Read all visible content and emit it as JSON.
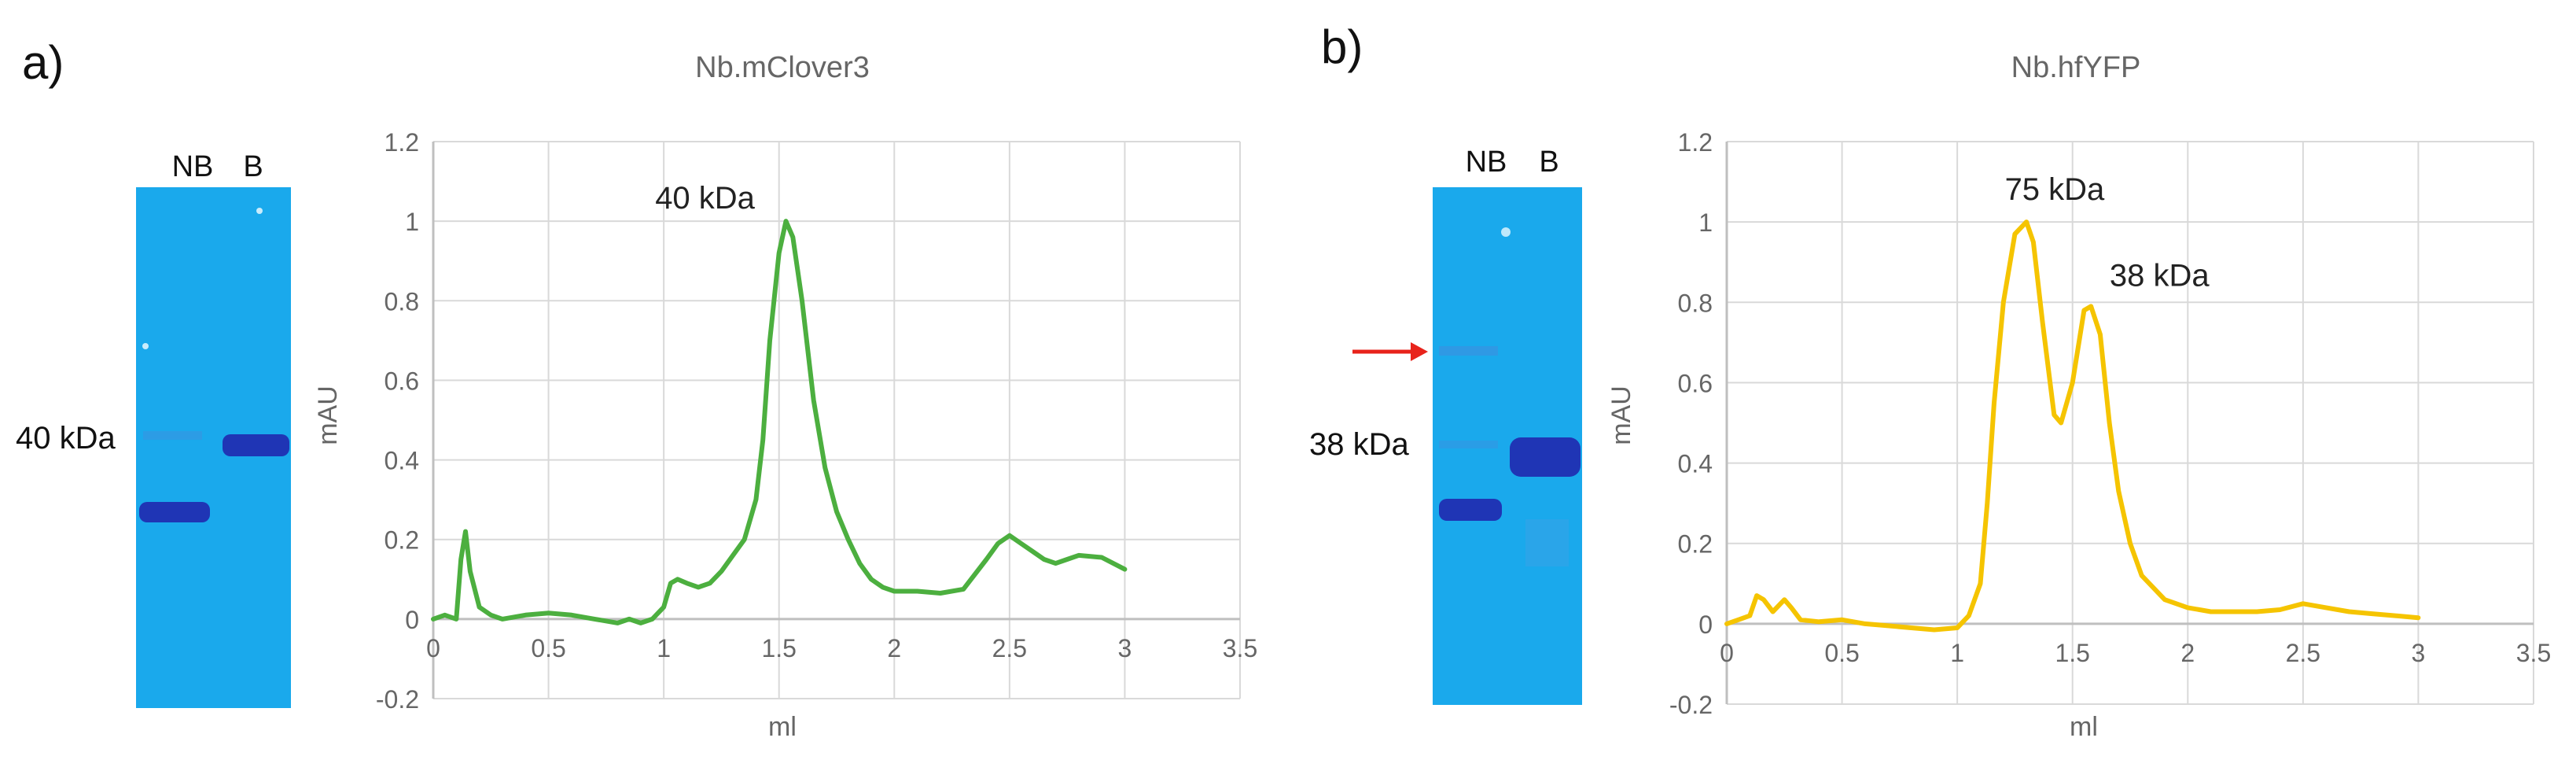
{
  "panels": [
    {
      "id": "a",
      "label": "a)",
      "gel": {
        "lanes": [
          "NB",
          "B"
        ],
        "marker_label": "40 kDa",
        "background_color": "#1aa9ec",
        "band_color": "#1f35b5"
      },
      "chart_data": {
        "type": "line",
        "title": "Nb.mClover3",
        "xlabel": "ml",
        "ylabel": "mAU",
        "xlim": [
          0,
          3.5
        ],
        "ylim": [
          -0.2,
          1.2
        ],
        "xticks": [
          0,
          0.5,
          1,
          1.5,
          2,
          2.5,
          3,
          3.5
        ],
        "yticks": [
          -0.2,
          0,
          0.2,
          0.4,
          0.6,
          0.8,
          1,
          1.2
        ],
        "xtick_labels": [
          "0",
          "0.5",
          "1",
          "1.5",
          "2",
          "2.5",
          "3",
          "3.5"
        ],
        "ytick_labels": [
          "-0.2",
          "0",
          "0.2",
          "0.4",
          "0.6",
          "0.8",
          "1",
          "1.2"
        ],
        "grid": true,
        "series": [
          {
            "name": "Nb.mClover3",
            "color": "#4caf3f",
            "x": [
              0,
              0.05,
              0.1,
              0.12,
              0.14,
              0.16,
              0.2,
              0.25,
              0.3,
              0.4,
              0.5,
              0.6,
              0.7,
              0.8,
              0.85,
              0.9,
              0.95,
              1.0,
              1.03,
              1.06,
              1.1,
              1.15,
              1.2,
              1.25,
              1.3,
              1.35,
              1.4,
              1.43,
              1.46,
              1.5,
              1.53,
              1.56,
              1.6,
              1.65,
              1.7,
              1.75,
              1.8,
              1.85,
              1.9,
              1.95,
              2.0,
              2.1,
              2.2,
              2.3,
              2.4,
              2.45,
              2.5,
              2.55,
              2.6,
              2.65,
              2.7,
              2.75,
              2.8,
              2.9,
              3.0
            ],
            "y": [
              0,
              0.01,
              0,
              0.15,
              0.22,
              0.12,
              0.03,
              0.01,
              0,
              0.01,
              0.015,
              0.01,
              0,
              -0.01,
              0,
              -0.01,
              0,
              0.03,
              0.09,
              0.1,
              0.09,
              0.08,
              0.09,
              0.12,
              0.16,
              0.2,
              0.3,
              0.45,
              0.7,
              0.92,
              1.0,
              0.96,
              0.8,
              0.55,
              0.38,
              0.27,
              0.2,
              0.14,
              0.1,
              0.08,
              0.07,
              0.07,
              0.065,
              0.075,
              0.15,
              0.19,
              0.21,
              0.19,
              0.17,
              0.15,
              0.14,
              0.15,
              0.16,
              0.155,
              0.125
            ]
          }
        ],
        "annotations": [
          {
            "text": "40 kDa",
            "x": 1.52,
            "y": 1.0
          }
        ]
      }
    },
    {
      "id": "b",
      "label": "b)",
      "gel": {
        "lanes": [
          "NB",
          "B"
        ],
        "marker_label": "38 kDa",
        "background_color": "#1aa9ec",
        "band_color": "#1f35b5",
        "arrow_color": "#e8231b"
      },
      "chart_data": {
        "type": "line",
        "title": "Nb.hfYFP",
        "xlabel": "ml",
        "ylabel": "mAU",
        "xlim": [
          0,
          3.5
        ],
        "ylim": [
          -0.2,
          1.2
        ],
        "xticks": [
          0,
          0.5,
          1,
          1.5,
          2,
          2.5,
          3,
          3.5
        ],
        "yticks": [
          -0.2,
          0,
          0.2,
          0.4,
          0.6,
          0.8,
          1,
          1.2
        ],
        "xtick_labels": [
          "0",
          "0.5",
          "1",
          "1.5",
          "2",
          "2.5",
          "3",
          "3.5"
        ],
        "ytick_labels": [
          "-0.2",
          "0",
          "0.2",
          "0.4",
          "0.6",
          "0.8",
          "1",
          "1.2"
        ],
        "grid": true,
        "series": [
          {
            "name": "Nb.hfYFP",
            "color": "#f5c400",
            "x": [
              0,
              0.05,
              0.1,
              0.13,
              0.16,
              0.2,
              0.25,
              0.28,
              0.32,
              0.4,
              0.5,
              0.6,
              0.7,
              0.8,
              0.9,
              1.0,
              1.05,
              1.1,
              1.13,
              1.16,
              1.2,
              1.25,
              1.3,
              1.33,
              1.37,
              1.42,
              1.45,
              1.5,
              1.55,
              1.58,
              1.62,
              1.66,
              1.7,
              1.75,
              1.8,
              1.9,
              2.0,
              2.1,
              2.2,
              2.3,
              2.4,
              2.5,
              2.6,
              2.7,
              2.8,
              2.9,
              3.0
            ],
            "y": [
              0,
              0.01,
              0.02,
              0.07,
              0.06,
              0.03,
              0.06,
              0.04,
              0.01,
              0.005,
              0.01,
              0,
              -0.005,
              -0.01,
              -0.015,
              -0.01,
              0.02,
              0.1,
              0.3,
              0.55,
              0.8,
              0.97,
              1.0,
              0.95,
              0.75,
              0.52,
              0.5,
              0.6,
              0.78,
              0.79,
              0.72,
              0.5,
              0.33,
              0.2,
              0.12,
              0.06,
              0.04,
              0.03,
              0.03,
              0.03,
              0.035,
              0.05,
              0.04,
              0.03,
              0.025,
              0.02,
              0.015
            ]
          }
        ],
        "annotations": [
          {
            "text": "75 kDa",
            "x": 1.32,
            "y": 1.0
          },
          {
            "text": "38 kDa",
            "x": 1.57,
            "y": 0.79
          }
        ]
      }
    }
  ]
}
